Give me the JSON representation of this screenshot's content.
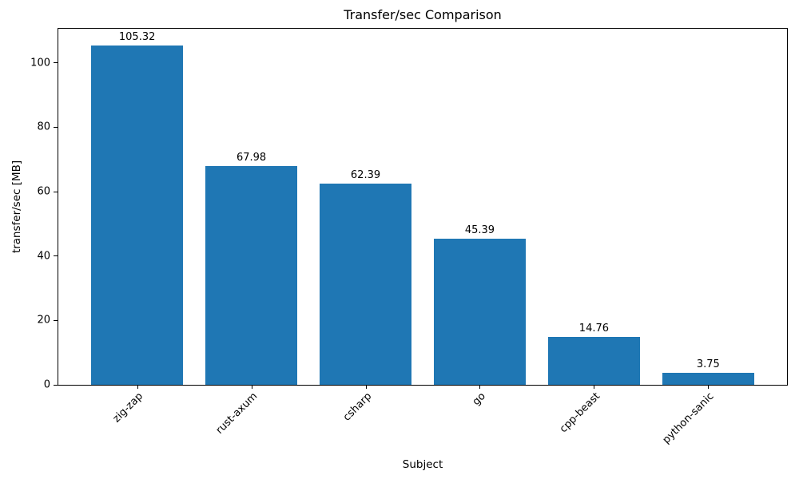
{
  "chart_data": {
    "type": "bar",
    "title": "Transfer/sec Comparison",
    "xlabel": "Subject",
    "ylabel": "transfer/sec [MB]",
    "categories": [
      "zig-zap",
      "rust-axum",
      "csharp",
      "go",
      "cpp-beast",
      "python-sanic"
    ],
    "values": [
      105.32,
      67.98,
      62.39,
      45.39,
      14.76,
      3.75
    ],
    "value_labels": [
      "105.32",
      "67.98",
      "62.39",
      "45.39",
      "14.76",
      "3.75"
    ],
    "yticks": [
      0,
      20,
      40,
      60,
      80,
      100
    ],
    "ylim": [
      0,
      110.6
    ],
    "bar_color": "#1f77b4",
    "text_color": "#000000",
    "grid": false,
    "legend_position": "none",
    "xtick_rotation": 45
  }
}
